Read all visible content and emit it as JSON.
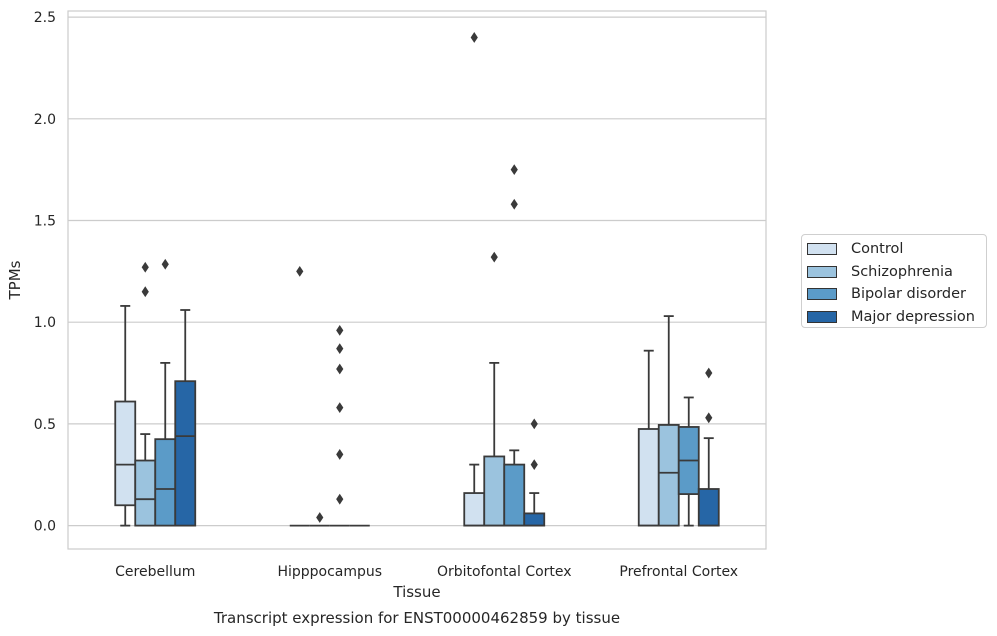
{
  "chart_data": {
    "type": "box",
    "title": "Transcript expression for ENST00000462859 by tissue",
    "xlabel": "Tissue",
    "ylabel": "TPMs",
    "ylim": [
      -0.115,
      2.53
    ],
    "yticks": [
      "0.0",
      "0.5",
      "1.0",
      "1.5",
      "2.0",
      "2.5"
    ],
    "ytick_values": [
      0,
      0.5,
      1.0,
      1.5,
      2.0,
      2.5
    ],
    "grid": true,
    "legend_position": "right",
    "categories": [
      "Cerebellum",
      "Hipppocampus",
      "Orbitofontal Cortex",
      "Prefrontal Cortex"
    ],
    "series": [
      {
        "name": "Control",
        "color": "#d1e1f0",
        "boxes": [
          {
            "whislo": 0.0,
            "q1": 0.1,
            "med": 0.3,
            "q3": 0.61,
            "whishi": 1.08,
            "fliers": []
          },
          {
            "whislo": 0.0,
            "q1": 0.0,
            "med": 0.0,
            "q3": 0.0,
            "whishi": 0.0,
            "fliers": [
              1.25
            ]
          },
          {
            "whislo": 0.0,
            "q1": 0.0,
            "med": 0.0,
            "q3": 0.16,
            "whishi": 0.3,
            "fliers": [
              2.4
            ]
          },
          {
            "whislo": 0.0,
            "q1": 0.0,
            "med": 0.0,
            "q3": 0.475,
            "whishi": 0.86,
            "fliers": []
          }
        ]
      },
      {
        "name": "Schizophrenia",
        "color": "#9bc3de",
        "boxes": [
          {
            "whislo": 0.0,
            "q1": 0.0,
            "med": 0.13,
            "q3": 0.32,
            "whishi": 0.45,
            "fliers": [
              1.15,
              1.27
            ]
          },
          {
            "whislo": 0.0,
            "q1": 0.0,
            "med": 0.0,
            "q3": 0.0,
            "whishi": 0.0,
            "fliers": [
              0.04
            ]
          },
          {
            "whislo": 0.0,
            "q1": 0.0,
            "med": 0.0,
            "q3": 0.34,
            "whishi": 0.8,
            "fliers": [
              1.32
            ]
          },
          {
            "whislo": 0.0,
            "q1": 0.0,
            "med": 0.26,
            "q3": 0.495,
            "whishi": 1.03,
            "fliers": []
          }
        ]
      },
      {
        "name": "Bipolar disorder",
        "color": "#5b9bc8",
        "boxes": [
          {
            "whislo": 0.0,
            "q1": 0.0,
            "med": 0.18,
            "q3": 0.425,
            "whishi": 0.8,
            "fliers": [
              1.285
            ]
          },
          {
            "whislo": 0.0,
            "q1": 0.0,
            "med": 0.0,
            "q3": 0.0,
            "whishi": 0.0,
            "fliers": [
              0.13,
              0.35,
              0.58,
              0.77,
              0.87,
              0.96
            ]
          },
          {
            "whislo": 0.0,
            "q1": 0.0,
            "med": 0.0,
            "q3": 0.3,
            "whishi": 0.37,
            "fliers": [
              1.58,
              1.75
            ]
          },
          {
            "whislo": 0.0,
            "q1": 0.155,
            "med": 0.32,
            "q3": 0.485,
            "whishi": 0.63,
            "fliers": []
          }
        ]
      },
      {
        "name": "Major depression",
        "color": "#2666a6",
        "boxes": [
          {
            "whislo": 0.0,
            "q1": 0.0,
            "med": 0.44,
            "q3": 0.71,
            "whishi": 1.06,
            "fliers": []
          },
          {
            "whislo": 0.0,
            "q1": 0.0,
            "med": 0.0,
            "q3": 0.0,
            "whishi": 0.0,
            "fliers": []
          },
          {
            "whislo": 0.0,
            "q1": 0.0,
            "med": 0.0,
            "q3": 0.06,
            "whishi": 0.16,
            "fliers": [
              0.3,
              0.5
            ]
          },
          {
            "whislo": 0.0,
            "q1": 0.0,
            "med": 0.0,
            "q3": 0.18,
            "whishi": 0.43,
            "fliers": [
              0.53,
              0.75
            ]
          }
        ]
      }
    ]
  }
}
